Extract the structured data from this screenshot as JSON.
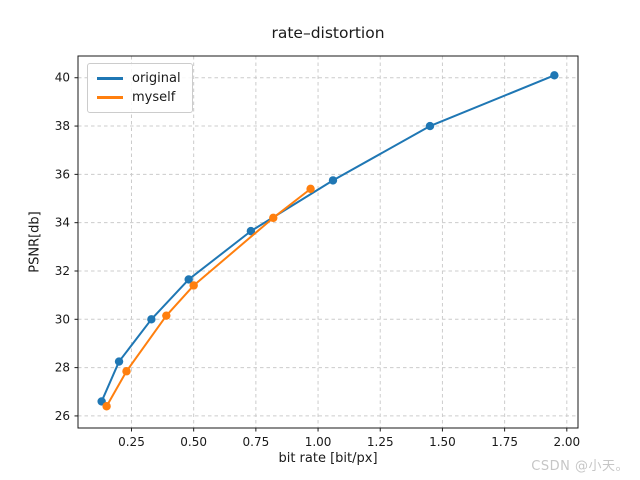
{
  "chart_data": {
    "type": "line",
    "title": "rate–distortion",
    "xlabel": "bit rate [bit/px]",
    "ylabel": "PSNR[db]",
    "xlim": [
      0.035,
      2.045
    ],
    "ylim": [
      25.5,
      40.9
    ],
    "xticks": [
      0.25,
      0.5,
      0.75,
      1.0,
      1.25,
      1.5,
      1.75,
      2.0
    ],
    "xtick_labels": [
      "0.25",
      "0.50",
      "0.75",
      "1.00",
      "1.25",
      "1.50",
      "1.75",
      "2.00"
    ],
    "yticks": [
      26,
      28,
      30,
      32,
      34,
      36,
      38,
      40
    ],
    "ytick_labels": [
      "26",
      "28",
      "30",
      "32",
      "34",
      "36",
      "38",
      "40"
    ],
    "grid": true,
    "grid_style": "dashed",
    "grid_color": "#cccccc",
    "legend_position": "upper left",
    "series": [
      {
        "name": "original",
        "color": "#1f77b4",
        "x": [
          0.13,
          0.2,
          0.33,
          0.48,
          0.73,
          1.06,
          1.45,
          1.95
        ],
        "y": [
          26.6,
          28.25,
          30.0,
          31.65,
          33.65,
          35.75,
          38.0,
          40.1
        ]
      },
      {
        "name": "myself",
        "color": "#ff7f0e",
        "x": [
          0.15,
          0.23,
          0.39,
          0.5,
          0.82,
          0.97
        ],
        "y": [
          26.4,
          27.85,
          30.15,
          31.4,
          34.2,
          35.4
        ]
      }
    ]
  },
  "watermark": {
    "text": "CSDN @小天。",
    "color": "#c6c6c6"
  }
}
